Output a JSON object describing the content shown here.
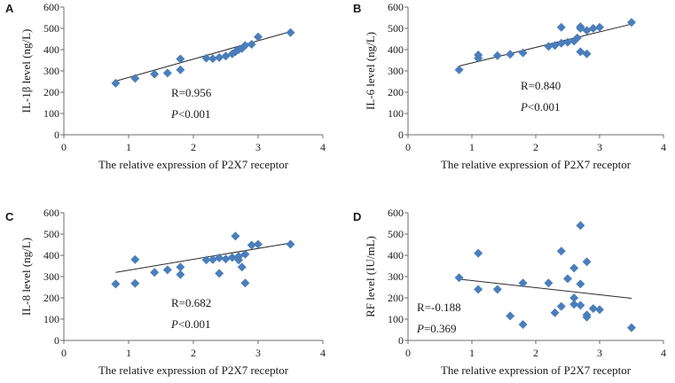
{
  "chart_data": [
    {
      "type": "scatter",
      "panel": "A",
      "xlabel": "The relative expression of P2X7 receptor",
      "ylabel": "IL-1β level (ng/L)",
      "xlim": [
        0,
        4
      ],
      "ylim": [
        0,
        600
      ],
      "xticks": [
        "0",
        "1",
        "2",
        "3",
        "4"
      ],
      "yticks": [
        "0",
        "100",
        "200",
        "300",
        "400",
        "500",
        "600"
      ],
      "marker_color": "#4a7ebb",
      "stat_r": "R=0.956",
      "stat_p_prefix": "P",
      "stat_p_rest": "<0.001",
      "trendline": [
        [
          0.8,
          252
        ],
        [
          3.5,
          485
        ]
      ],
      "points": [
        [
          0.8,
          242
        ],
        [
          1.1,
          265
        ],
        [
          1.4,
          285
        ],
        [
          1.6,
          290
        ],
        [
          1.8,
          305
        ],
        [
          1.8,
          356
        ],
        [
          2.2,
          360
        ],
        [
          2.3,
          358
        ],
        [
          2.4,
          363
        ],
        [
          2.5,
          370
        ],
        [
          2.6,
          380
        ],
        [
          2.65,
          390
        ],
        [
          2.7,
          400
        ],
        [
          2.75,
          405
        ],
        [
          2.8,
          420
        ],
        [
          2.9,
          425
        ],
        [
          3.0,
          460
        ],
        [
          3.5,
          480
        ]
      ]
    },
    {
      "type": "scatter",
      "panel": "B",
      "xlabel": "The relative expression of P2X7 receptor",
      "ylabel": "IL-6 level (ng/L)",
      "xlim": [
        0,
        4
      ],
      "ylim": [
        0,
        600
      ],
      "xticks": [
        "0",
        "1",
        "2",
        "3",
        "4"
      ],
      "yticks": [
        "0",
        "100",
        "200",
        "300",
        "400",
        "500",
        "600"
      ],
      "marker_color": "#4a7ebb",
      "stat_r": "R=0.840",
      "stat_p_prefix": "P",
      "stat_p_rest": "<0.001",
      "trendline": [
        [
          0.8,
          323
        ],
        [
          3.5,
          520
        ]
      ],
      "points": [
        [
          0.8,
          305
        ],
        [
          1.1,
          360
        ],
        [
          1.1,
          375
        ],
        [
          1.4,
          372
        ],
        [
          1.6,
          378
        ],
        [
          1.8,
          385
        ],
        [
          2.2,
          415
        ],
        [
          2.3,
          420
        ],
        [
          2.4,
          430
        ],
        [
          2.4,
          505
        ],
        [
          2.5,
          435
        ],
        [
          2.6,
          440
        ],
        [
          2.65,
          455
        ],
        [
          2.7,
          500
        ],
        [
          2.7,
          508
        ],
        [
          2.7,
          390
        ],
        [
          2.8,
          380
        ],
        [
          2.8,
          490
        ],
        [
          2.9,
          500
        ],
        [
          3.0,
          505
        ],
        [
          3.5,
          528
        ]
      ]
    },
    {
      "type": "scatter",
      "panel": "C",
      "xlabel": "The relative expression of P2X7 receptor",
      "ylabel": "IL-8 level (ng/L)",
      "xlim": [
        0,
        4
      ],
      "ylim": [
        0,
        600
      ],
      "xticks": [
        "0",
        "1",
        "2",
        "3",
        "4"
      ],
      "yticks": [
        "0",
        "100",
        "200",
        "300",
        "400",
        "500",
        "600"
      ],
      "marker_color": "#4a7ebb",
      "stat_r": "R=0.682",
      "stat_p_prefix": "P",
      "stat_p_rest": "<0.001",
      "trendline": [
        [
          0.8,
          320
        ],
        [
          3.5,
          458
        ]
      ],
      "points": [
        [
          0.8,
          265
        ],
        [
          1.1,
          268
        ],
        [
          1.1,
          380
        ],
        [
          1.4,
          320
        ],
        [
          1.6,
          332
        ],
        [
          1.8,
          310
        ],
        [
          1.8,
          345
        ],
        [
          2.2,
          378
        ],
        [
          2.3,
          380
        ],
        [
          2.4,
          388
        ],
        [
          2.4,
          315
        ],
        [
          2.5,
          383
        ],
        [
          2.6,
          390
        ],
        [
          2.65,
          490
        ],
        [
          2.7,
          378
        ],
        [
          2.7,
          395
        ],
        [
          2.75,
          345
        ],
        [
          2.8,
          405
        ],
        [
          2.8,
          270
        ],
        [
          2.9,
          448
        ],
        [
          3.0,
          452
        ],
        [
          3.5,
          452
        ]
      ]
    },
    {
      "type": "scatter",
      "panel": "D",
      "xlabel": "The relative expression of P2X7 receptor",
      "ylabel": "RF level (IU/mL)",
      "xlim": [
        0,
        4
      ],
      "ylim": [
        0,
        600
      ],
      "xticks": [
        "0",
        "1",
        "2",
        "3",
        "4"
      ],
      "yticks": [
        "0",
        "100",
        "200",
        "300",
        "400",
        "500",
        "600"
      ],
      "marker_color": "#4a7ebb",
      "stat_r": "R=-0.188",
      "stat_p_prefix": "P",
      "stat_p_rest": "=0.369",
      "trendline": [
        [
          0.8,
          288
        ],
        [
          3.5,
          198
        ]
      ],
      "points": [
        [
          0.8,
          295
        ],
        [
          1.1,
          240
        ],
        [
          1.1,
          410
        ],
        [
          1.4,
          240
        ],
        [
          1.6,
          115
        ],
        [
          1.8,
          270
        ],
        [
          1.8,
          75
        ],
        [
          2.2,
          270
        ],
        [
          2.3,
          130
        ],
        [
          2.4,
          160
        ],
        [
          2.4,
          420
        ],
        [
          2.5,
          290
        ],
        [
          2.6,
          340
        ],
        [
          2.6,
          200
        ],
        [
          2.6,
          170
        ],
        [
          2.7,
          540
        ],
        [
          2.7,
          165
        ],
        [
          2.7,
          265
        ],
        [
          2.8,
          110
        ],
        [
          2.8,
          120
        ],
        [
          2.8,
          370
        ],
        [
          2.9,
          150
        ],
        [
          3.0,
          145
        ],
        [
          3.5,
          60
        ]
      ]
    }
  ]
}
